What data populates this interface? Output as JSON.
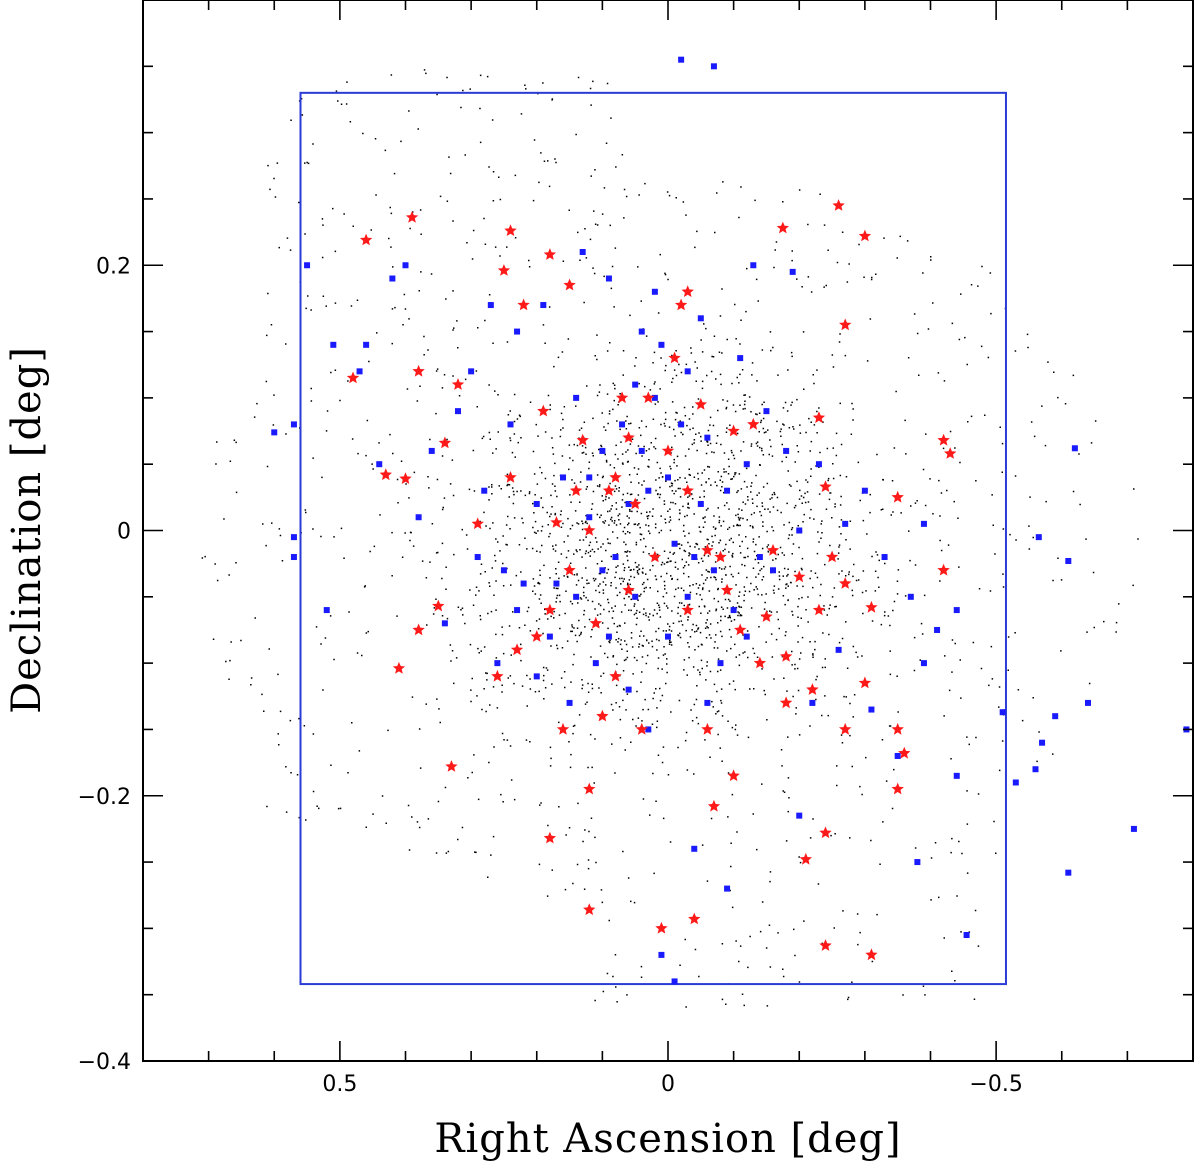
{
  "chart_data": {
    "type": "scatter",
    "title": "",
    "xlabel": "Right Ascension [deg]",
    "ylabel": "Declination [deg]",
    "xlim": [
      0.8,
      -0.8
    ],
    "ylim": [
      -0.4,
      0.4
    ],
    "x_ticks": [
      0.5,
      0,
      -0.5
    ],
    "x_tick_labels": [
      "0.5",
      "0",
      "−0.5"
    ],
    "y_ticks": [
      0.2,
      0,
      -0.2,
      -0.4
    ],
    "y_tick_labels": [
      "0.2",
      "0",
      "−0.2",
      "−0.4"
    ],
    "grid": false,
    "legend": "none",
    "footprint_box": {
      "ra": [
        0.56,
        -0.515
      ],
      "dec": [
        -0.342,
        0.33
      ],
      "color": "#2b3bd6"
    },
    "background_sources": {
      "description_marker": "small black dots",
      "color": "#000000",
      "regions": [
        {
          "shape": "ellipse",
          "ra_center": 0.0,
          "dec_center": -0.01,
          "ra_radius": 0.72,
          "dec_radius": 0.28
        },
        {
          "shape": "rect",
          "ra": [
            0.62,
            0.07
          ],
          "dec": [
            -0.22,
            0.35
          ]
        },
        {
          "shape": "rect",
          "ra": [
            -0.5,
            0.12
          ],
          "dec": [
            -0.36,
            0.2
          ]
        }
      ],
      "count_approx": 30000
    },
    "series": [
      {
        "marker": "square",
        "color": "#1a1aff",
        "points": [
          [
            -0.62,
            0.062
          ],
          [
            -0.61,
            -0.023
          ],
          [
            -0.565,
            -0.005
          ],
          [
            -0.59,
            -0.14
          ],
          [
            -0.57,
            -0.16
          ],
          [
            -0.56,
            -0.18
          ],
          [
            -0.53,
            -0.19
          ],
          [
            -0.51,
            -0.137
          ],
          [
            -0.79,
            -0.15
          ],
          [
            -0.71,
            -0.225
          ],
          [
            -0.64,
            -0.13
          ],
          [
            -0.61,
            -0.258
          ],
          [
            -0.44,
            -0.185
          ],
          [
            -0.44,
            -0.06
          ],
          [
            -0.455,
            -0.305
          ],
          [
            -0.38,
            -0.25
          ],
          [
            -0.35,
            -0.17
          ],
          [
            -0.39,
            -0.1
          ],
          [
            -0.41,
            -0.075
          ],
          [
            -0.37,
            -0.05
          ],
          [
            -0.39,
            0.005
          ],
          [
            -0.33,
            -0.02
          ],
          [
            -0.31,
            -0.135
          ],
          [
            -0.3,
            0.03
          ],
          [
            -0.27,
            0.005
          ],
          [
            -0.26,
            -0.09
          ],
          [
            -0.22,
            -0.13
          ],
          [
            -0.2,
            0.0
          ],
          [
            -0.2,
            -0.215
          ],
          [
            -0.19,
            0.195
          ],
          [
            -0.13,
            0.2
          ],
          [
            -0.11,
            0.13
          ],
          [
            -0.06,
            0.07
          ],
          [
            -0.05,
            0.02
          ],
          [
            -0.04,
            -0.02
          ],
          [
            -0.02,
            0.08
          ],
          [
            0.0,
            0.04
          ],
          [
            0.02,
            0.1
          ],
          [
            0.04,
            0.06
          ],
          [
            0.06,
            0.02
          ],
          [
            0.08,
            -0.02
          ],
          [
            0.1,
            0.06
          ],
          [
            0.12,
            0.01
          ],
          [
            0.14,
            -0.05
          ],
          [
            0.16,
            0.04
          ],
          [
            0.18,
            -0.08
          ],
          [
            0.2,
            0.02
          ],
          [
            0.22,
            -0.04
          ],
          [
            0.24,
            0.08
          ],
          [
            0.26,
            -0.1
          ],
          [
            0.28,
            0.03
          ],
          [
            0.3,
            0.12
          ],
          [
            0.32,
            0.09
          ],
          [
            0.34,
            -0.07
          ],
          [
            0.36,
            0.06
          ],
          [
            0.38,
            0.01
          ],
          [
            0.4,
            0.2
          ],
          [
            0.42,
            0.19
          ],
          [
            0.44,
            0.05
          ],
          [
            0.46,
            0.14
          ],
          [
            0.47,
            0.12
          ],
          [
            0.55,
            0.2
          ],
          [
            0.51,
            0.14
          ],
          [
            0.57,
            0.08
          ],
          [
            0.6,
            0.074
          ],
          [
            0.57,
            -0.005
          ],
          [
            0.52,
            -0.06
          ],
          [
            0.57,
            -0.02
          ],
          [
            -0.07,
            0.35
          ],
          [
            -0.02,
            0.355
          ],
          [
            0.01,
            -0.32
          ],
          [
            -0.01,
            -0.34
          ],
          [
            -0.09,
            -0.27
          ],
          [
            -0.04,
            -0.24
          ],
          [
            0.04,
            0.15
          ],
          [
            0.09,
            0.19
          ],
          [
            0.13,
            0.21
          ],
          [
            0.19,
            0.17
          ],
          [
            0.23,
            0.15
          ],
          [
            0.27,
            0.17
          ],
          [
            0.02,
            0.18
          ],
          [
            -0.05,
            0.16
          ],
          [
            -0.15,
            0.09
          ],
          [
            -0.18,
            0.06
          ],
          [
            -0.23,
            0.05
          ],
          [
            -0.14,
            -0.02
          ],
          [
            -0.1,
            -0.06
          ],
          [
            -0.08,
            -0.1
          ],
          [
            -0.12,
            -0.08
          ],
          [
            -0.16,
            -0.03
          ],
          [
            -0.06,
            -0.13
          ],
          [
            0.03,
            -0.15
          ],
          [
            0.06,
            -0.12
          ],
          [
            0.09,
            -0.08
          ],
          [
            0.11,
            -0.1
          ],
          [
            0.15,
            -0.13
          ],
          [
            0.17,
            -0.04
          ],
          [
            0.2,
            -0.11
          ],
          [
            0.23,
            -0.06
          ],
          [
            0.25,
            -0.03
          ],
          [
            0.29,
            -0.02
          ],
          [
            -0.03,
            0.12
          ],
          [
            0.01,
            0.14
          ],
          [
            0.05,
            0.11
          ],
          [
            0.07,
            0.08
          ],
          [
            0.03,
            0.03
          ],
          [
            -0.01,
            -0.01
          ],
          [
            -0.03,
            -0.05
          ],
          [
            0.05,
            -0.05
          ],
          [
            0.1,
            -0.03
          ],
          [
            0.12,
            0.04
          ],
          [
            0.14,
            0.1
          ],
          [
            -0.09,
            0.03
          ],
          [
            -0.12,
            0.05
          ],
          [
            -0.07,
            -0.03
          ],
          [
            0.0,
            -0.08
          ]
        ]
      },
      {
        "marker": "star",
        "color": "#ff1a1a",
        "points": [
          [
            -0.26,
            0.245
          ],
          [
            -0.3,
            0.222
          ],
          [
            -0.175,
            0.228
          ],
          [
            -0.27,
            0.155
          ],
          [
            -0.42,
            0.068
          ],
          [
            -0.43,
            0.058
          ],
          [
            -0.35,
            0.025
          ],
          [
            -0.42,
            -0.03
          ],
          [
            -0.31,
            -0.058
          ],
          [
            -0.35,
            -0.15
          ],
          [
            -0.36,
            -0.168
          ],
          [
            -0.35,
            -0.195
          ],
          [
            -0.3,
            -0.115
          ],
          [
            -0.27,
            -0.15
          ],
          [
            -0.24,
            -0.228
          ],
          [
            -0.21,
            -0.248
          ],
          [
            -0.24,
            -0.313
          ],
          [
            -0.31,
            -0.32
          ],
          [
            -0.04,
            -0.293
          ],
          [
            0.01,
            -0.3
          ],
          [
            0.12,
            -0.286
          ],
          [
            -0.1,
            -0.185
          ],
          [
            -0.07,
            -0.208
          ],
          [
            0.12,
            -0.195
          ],
          [
            0.18,
            -0.232
          ],
          [
            0.33,
            -0.178
          ],
          [
            0.41,
            -0.104
          ],
          [
            0.38,
            -0.075
          ],
          [
            0.35,
            -0.057
          ],
          [
            0.43,
            0.042
          ],
          [
            0.4,
            0.039
          ],
          [
            0.34,
            0.066
          ],
          [
            0.38,
            0.12
          ],
          [
            0.48,
            0.115
          ],
          [
            0.32,
            0.11
          ],
          [
            0.39,
            0.236
          ],
          [
            0.46,
            0.219
          ],
          [
            0.24,
            0.226
          ],
          [
            0.25,
            0.196
          ],
          [
            0.22,
            0.17
          ],
          [
            0.15,
            0.185
          ],
          [
            0.18,
            0.208
          ],
          [
            -0.03,
            0.18
          ],
          [
            -0.02,
            0.17
          ],
          [
            -0.23,
            0.085
          ],
          [
            -0.24,
            0.033
          ],
          [
            -0.25,
            -0.02
          ],
          [
            -0.27,
            -0.04
          ],
          [
            -0.23,
            -0.06
          ],
          [
            -0.18,
            -0.095
          ],
          [
            -0.15,
            -0.065
          ],
          [
            -0.11,
            -0.075
          ],
          [
            -0.09,
            -0.045
          ],
          [
            -0.06,
            -0.015
          ],
          [
            -0.03,
            0.03
          ],
          [
            0.0,
            0.06
          ],
          [
            0.03,
            0.1
          ],
          [
            0.06,
            0.07
          ],
          [
            0.09,
            0.03
          ],
          [
            0.12,
            0.0
          ],
          [
            0.15,
            -0.03
          ],
          [
            0.18,
            -0.06
          ],
          [
            0.2,
            -0.08
          ],
          [
            0.23,
            -0.09
          ],
          [
            0.26,
            -0.11
          ],
          [
            0.29,
            0.005
          ],
          [
            0.24,
            0.04
          ],
          [
            0.19,
            0.09
          ],
          [
            0.13,
            0.068
          ],
          [
            0.07,
            0.1
          ],
          [
            -0.01,
            0.13
          ],
          [
            -0.05,
            0.095
          ],
          [
            -0.1,
            0.075
          ],
          [
            -0.13,
            0.08
          ],
          [
            -0.16,
            -0.015
          ],
          [
            -0.2,
            -0.035
          ],
          [
            -0.22,
            -0.12
          ],
          [
            -0.18,
            -0.13
          ],
          [
            -0.14,
            -0.1
          ],
          [
            -0.06,
            -0.15
          ],
          [
            0.04,
            -0.15
          ],
          [
            0.08,
            -0.11
          ],
          [
            0.1,
            -0.14
          ],
          [
            0.16,
            -0.15
          ],
          [
            0.11,
            -0.07
          ],
          [
            0.06,
            -0.045
          ],
          [
            0.02,
            -0.02
          ],
          [
            -0.03,
            -0.06
          ],
          [
            -0.08,
            -0.02
          ],
          [
            0.05,
            0.02
          ],
          [
            0.08,
            0.04
          ],
          [
            0.14,
            0.03
          ],
          [
            0.17,
            0.006
          ]
        ]
      }
    ]
  }
}
